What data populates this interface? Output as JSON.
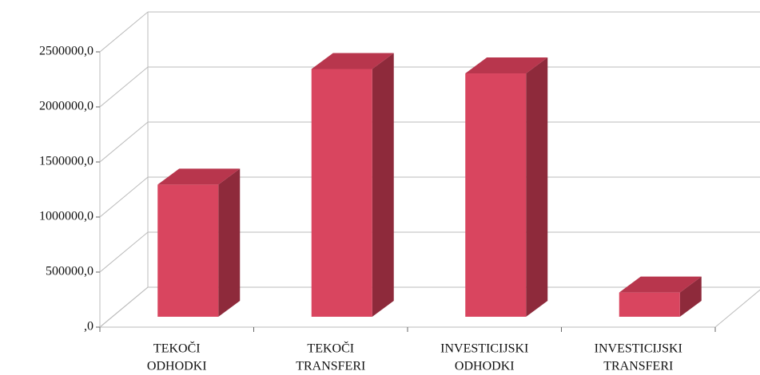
{
  "chart_data": {
    "type": "bar3d",
    "categories": [
      [
        "TEKOČI",
        "ODHODKI"
      ],
      [
        "TEKOČI",
        "TRANSFERI"
      ],
      [
        "INVESTICIJSKI",
        "ODHODKI"
      ],
      [
        "INVESTICIJSKI",
        "TRANSFERI"
      ]
    ],
    "values": [
      1200000,
      2250000,
      2210000,
      220000
    ],
    "color": "#d9455f",
    "side_color": "#8e2a3b",
    "top_color": "#b8364d",
    "ylim": [
      0,
      2500000
    ],
    "yticks": [
      {
        "value": 0,
        "label": ",0"
      },
      {
        "value": 500000,
        "label": "500000,0"
      },
      {
        "value": 1000000,
        "label": "1000000,0"
      },
      {
        "value": 1500000,
        "label": "1500000,0"
      },
      {
        "value": 2000000,
        "label": "2000000,0"
      },
      {
        "value": 2500000,
        "label": "2500000,0"
      }
    ],
    "grid": true
  }
}
